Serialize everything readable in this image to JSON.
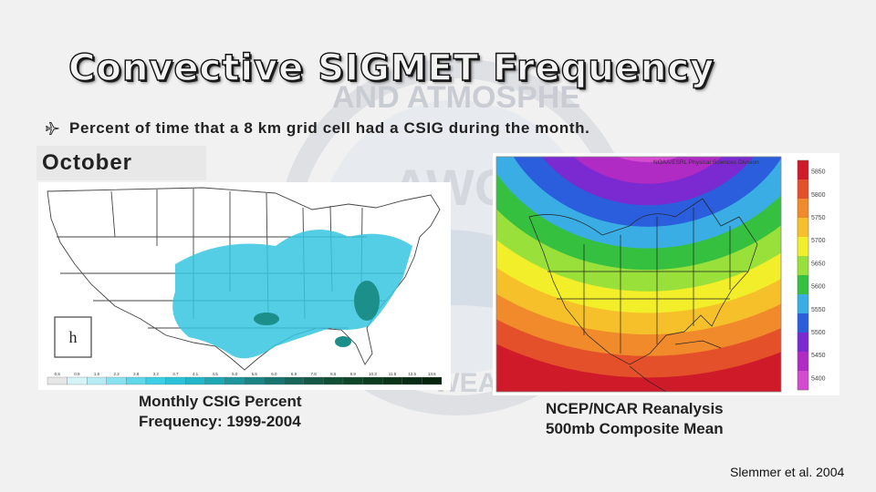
{
  "slide": {
    "title": "Convective SIGMET Frequency",
    "bullet": "Percent of time that a 8 km grid cell had a CSIG during the month.",
    "month": "October",
    "left_caption": [
      "Monthly CSIG Percent",
      "Frequency: 1999-2004"
    ],
    "right_caption": [
      "NCEP/NCAR Reanalysis",
      "500mb Composite Mean"
    ],
    "citation": "Slemmer et al. 2004"
  },
  "background_logo": {
    "text": [
      "AND ATMOSPHE",
      "AWC",
      "WEATHER"
    ],
    "icon": "noaa-awc-seal"
  },
  "left_figure": {
    "panel_label": "h",
    "colorbar_ticks": [
      "0.5",
      "0.9",
      "1.5",
      "2.2",
      "2.8",
      "3.2",
      "3.7",
      "4.1",
      "4.5",
      "5.0",
      "5.5",
      "6.0",
      "6.9",
      "7.8",
      "8.5",
      "9.9",
      "10.3",
      "11.5",
      "12.5",
      "13.5"
    ],
    "colorbar_colors": [
      "#e6e6e6",
      "#d6f3f7",
      "#b5ecf3",
      "#89e2ef",
      "#5fd8ea",
      "#3dcfe3",
      "#2ac3d8",
      "#22b6c8",
      "#1fa7b3",
      "#1d969c",
      "#1b8585",
      "#19746f",
      "#176659",
      "#145a46",
      "#115036",
      "#0f4629",
      "#0d3d20",
      "#0b3419",
      "#092c14",
      "#07240f"
    ],
    "shading_color": "#35c6e0"
  },
  "right_figure": {
    "header": "NOAA/ESRL Physical Sciences Division",
    "colorbar_labels": [
      "5850",
      "5800",
      "5750",
      "5700",
      "5650",
      "5600",
      "5550",
      "5500",
      "5450",
      "5400"
    ],
    "colorbar_colors": [
      "#cf1a2a",
      "#e4502a",
      "#f08a2a",
      "#f6c02a",
      "#f2ee2a",
      "#9ae03a",
      "#36c040",
      "#3aaee4",
      "#2a5edc",
      "#7a2ad0",
      "#b02ac4",
      "#d44ad0"
    ]
  }
}
